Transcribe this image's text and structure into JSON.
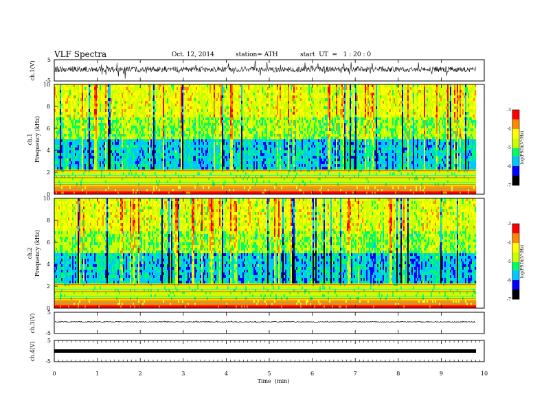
{
  "header": {
    "title": "VLF Spectra",
    "date": "Oct. 12, 2014",
    "station": "station= ATH",
    "start": "start  UT  =   1 : 20 : 0"
  },
  "chart_data": [
    {
      "type": "line",
      "name": "ch.1 waveform",
      "ylabel": "ch.1(V)",
      "ylim": [
        -5,
        5
      ],
      "yticks": [
        "5",
        "-5"
      ],
      "xlim": [
        0,
        10
      ],
      "trace_color": "#000000"
    },
    {
      "type": "heatmap",
      "name": "ch.1 spectrogram",
      "ylabel_channel": "ch.1",
      "ylabel": "Frequency (kHz)",
      "ylim": [
        0,
        10
      ],
      "yticks": [
        "0",
        "2",
        "4",
        "6",
        "8",
        "10"
      ],
      "xlim": [
        0,
        9.8
      ],
      "colorbar": {
        "label": "log(PSD)(V²/Hz)",
        "range": [
          -7,
          -3
        ],
        "ticks": [
          "-3",
          "-4",
          "-5",
          "-6",
          "-7"
        ]
      },
      "bands": [
        {
          "freq_khz": [
            0,
            0.3
          ],
          "level": -3.3
        },
        {
          "freq_khz": [
            0.3,
            0.7
          ],
          "level": -3.8
        },
        {
          "freq_khz": [
            0.7,
            2.2
          ],
          "level": -4.8
        },
        {
          "freq_khz": [
            2.2,
            5.0
          ],
          "level": -5.7
        },
        {
          "freq_khz": [
            5.0,
            7.0
          ],
          "level": -4.9
        },
        {
          "freq_khz": [
            7.0,
            10.0
          ],
          "level": -4.5
        }
      ]
    },
    {
      "type": "heatmap",
      "name": "ch.2 spectrogram",
      "ylabel_channel": "ch.2",
      "ylabel": "Frequency (kHz)",
      "ylim": [
        0,
        10
      ],
      "yticks": [
        "0",
        "2",
        "4",
        "6",
        "8",
        "10"
      ],
      "xlim": [
        0,
        9.8
      ],
      "colorbar": {
        "label": "log(PSD)(V²/Hz)",
        "range": [
          -7,
          -3
        ],
        "ticks": [
          "-3",
          "-4",
          "-5",
          "-6",
          "-7"
        ]
      },
      "bands": [
        {
          "freq_khz": [
            0,
            0.3
          ],
          "level": -3.3
        },
        {
          "freq_khz": [
            0.3,
            0.7
          ],
          "level": -3.8
        },
        {
          "freq_khz": [
            0.7,
            2.2
          ],
          "level": -4.8
        },
        {
          "freq_khz": [
            2.2,
            5.0
          ],
          "level": -5.7
        },
        {
          "freq_khz": [
            5.0,
            7.0
          ],
          "level": -4.9
        },
        {
          "freq_khz": [
            7.0,
            10.0
          ],
          "level": -4.5
        }
      ]
    },
    {
      "type": "line",
      "name": "ch.3 waveform",
      "ylabel": "ch.3(V)",
      "ylim": [
        -5,
        5
      ],
      "yticks": [
        "5",
        "-5"
      ],
      "xlim": [
        0,
        10
      ],
      "trace_color": "#000000"
    },
    {
      "type": "line",
      "name": "ch.4 waveform",
      "ylabel": "ch.4(V)",
      "ylim": [
        -5,
        5
      ],
      "yticks": [
        "5",
        "-5"
      ],
      "xlim": [
        0,
        10
      ],
      "trace_color": "#000000"
    }
  ],
  "xaxis": {
    "label": "Time  (min)",
    "ticks": [
      "0",
      "1",
      "2",
      "3",
      "4",
      "5",
      "6",
      "7",
      "8",
      "9",
      "10"
    ]
  },
  "colors": {
    "psd_scale": [
      "#000000",
      "#0000ff",
      "#00c8ff",
      "#00ff66",
      "#c8ff00",
      "#ffff00",
      "#ff8800",
      "#ff0000",
      "#ffffff"
    ]
  }
}
